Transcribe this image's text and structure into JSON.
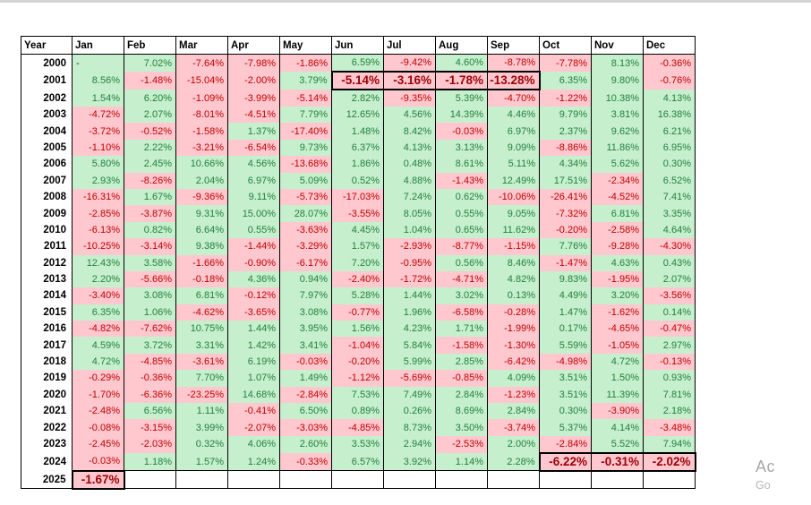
{
  "columns": [
    "Year",
    "Jan",
    "Feb",
    "Mar",
    "Apr",
    "May",
    "Jun",
    "Jul",
    "Aug",
    "Sep",
    "Oct",
    "Nov",
    "Dec"
  ],
  "rows": [
    {
      "year": "2000",
      "values": [
        "-",
        "7.02%",
        "-7.64%",
        "-7.98%",
        "-1.86%",
        "6.59%",
        "-9.42%",
        "4.60%",
        "-8.78%",
        "-7.78%",
        "8.13%",
        "-0.36%"
      ]
    },
    {
      "year": "2001",
      "values": [
        "8.56%",
        "-1.48%",
        "-15.04%",
        "-2.00%",
        "3.79%",
        "-5.14%",
        "-3.16%",
        "-1.78%",
        "-13.28%",
        "6.35%",
        "9.80%",
        "-0.76%"
      ]
    },
    {
      "year": "2002",
      "values": [
        "1.54%",
        "6.20%",
        "-1.09%",
        "-3.99%",
        "-5.14%",
        "2.82%",
        "-9.35%",
        "5.39%",
        "-4.70%",
        "-1.22%",
        "10.38%",
        "4.13%"
      ]
    },
    {
      "year": "2003",
      "values": [
        "-4.72%",
        "2.07%",
        "-8.01%",
        "-4.51%",
        "7.79%",
        "12.65%",
        "4.56%",
        "14.39%",
        "4.46%",
        "9.79%",
        "3.81%",
        "16.38%"
      ]
    },
    {
      "year": "2004",
      "values": [
        "-3.72%",
        "-0.52%",
        "-1.58%",
        "1.37%",
        "-17.40%",
        "1.48%",
        "8.42%",
        "-0.03%",
        "6.97%",
        "2.37%",
        "9.62%",
        "6.21%"
      ]
    },
    {
      "year": "2005",
      "values": [
        "-1.10%",
        "2.22%",
        "-3.21%",
        "-6.54%",
        "9.73%",
        "6.37%",
        "4.13%",
        "3.13%",
        "9.09%",
        "-8.86%",
        "11.86%",
        "6.95%"
      ]
    },
    {
      "year": "2006",
      "values": [
        "5.80%",
        "2.45%",
        "10.66%",
        "4.56%",
        "-13.68%",
        "1.86%",
        "0.48%",
        "8.61%",
        "5.11%",
        "4.34%",
        "5.62%",
        "0.30%"
      ]
    },
    {
      "year": "2007",
      "values": [
        "2.93%",
        "-8.26%",
        "2.04%",
        "6.97%",
        "5.09%",
        "0.52%",
        "4.88%",
        "-1.43%",
        "12.49%",
        "17.51%",
        "-2.34%",
        "6.52%"
      ]
    },
    {
      "year": "2008",
      "values": [
        "-16.31%",
        "1.67%",
        "-9.36%",
        "9.11%",
        "-5.73%",
        "-17.03%",
        "7.24%",
        "0.62%",
        "-10.06%",
        "-26.41%",
        "-4.52%",
        "7.41%"
      ]
    },
    {
      "year": "2009",
      "values": [
        "-2.85%",
        "-3.87%",
        "9.31%",
        "15.00%",
        "28.07%",
        "-3.55%",
        "8.05%",
        "0.55%",
        "9.05%",
        "-7.32%",
        "6.81%",
        "3.35%"
      ]
    },
    {
      "year": "2010",
      "values": [
        "-6.13%",
        "0.82%",
        "6.64%",
        "0.55%",
        "-3.63%",
        "4.45%",
        "1.04%",
        "0.65%",
        "11.62%",
        "-0.20%",
        "-2.58%",
        "4.64%"
      ]
    },
    {
      "year": "2011",
      "values": [
        "-10.25%",
        "-3.14%",
        "9.38%",
        "-1.44%",
        "-3.29%",
        "1.57%",
        "-2.93%",
        "-8.77%",
        "-1.15%",
        "7.76%",
        "-9.28%",
        "-4.30%"
      ]
    },
    {
      "year": "2012",
      "values": [
        "12.43%",
        "3.58%",
        "-1.66%",
        "-0.90%",
        "-6.17%",
        "7.20%",
        "-0.95%",
        "0.56%",
        "8.46%",
        "-1.47%",
        "4.63%",
        "0.43%"
      ]
    },
    {
      "year": "2013",
      "values": [
        "2.20%",
        "-5.66%",
        "-0.18%",
        "4.36%",
        "0.94%",
        "-2.40%",
        "-1.72%",
        "-4.71%",
        "4.82%",
        "9.83%",
        "-1.95%",
        "2.07%"
      ]
    },
    {
      "year": "2014",
      "values": [
        "-3.40%",
        "3.08%",
        "6.81%",
        "-0.12%",
        "7.97%",
        "5.28%",
        "1.44%",
        "3.02%",
        "0.13%",
        "4.49%",
        "3.20%",
        "-3.56%"
      ]
    },
    {
      "year": "2015",
      "values": [
        "6.35%",
        "1.06%",
        "-4.62%",
        "-3.65%",
        "3.08%",
        "-0.77%",
        "1.96%",
        "-6.58%",
        "-0.28%",
        "1.47%",
        "-1.62%",
        "0.14%"
      ]
    },
    {
      "year": "2016",
      "values": [
        "-4.82%",
        "-7.62%",
        "10.75%",
        "1.44%",
        "3.95%",
        "1.56%",
        "4.23%",
        "1.71%",
        "-1.99%",
        "0.17%",
        "-4.65%",
        "-0.47%"
      ]
    },
    {
      "year": "2017",
      "values": [
        "4.59%",
        "3.72%",
        "3.31%",
        "1.42%",
        "3.41%",
        "-1.04%",
        "5.84%",
        "-1.58%",
        "-1.30%",
        "5.59%",
        "-1.05%",
        "2.97%"
      ]
    },
    {
      "year": "2018",
      "values": [
        "4.72%",
        "-4.85%",
        "-3.61%",
        "6.19%",
        "-0.03%",
        "-0.20%",
        "5.99%",
        "2.85%",
        "-6.42%",
        "-4.98%",
        "4.72%",
        "-0.13%"
      ]
    },
    {
      "year": "2019",
      "values": [
        "-0.29%",
        "-0.36%",
        "7.70%",
        "1.07%",
        "1.49%",
        "-1.12%",
        "-5.69%",
        "-0.85%",
        "4.09%",
        "3.51%",
        "1.50%",
        "0.93%"
      ]
    },
    {
      "year": "2020",
      "values": [
        "-1.70%",
        "-6.36%",
        "-23.25%",
        "14.68%",
        "-2.84%",
        "7.53%",
        "7.49%",
        "2.84%",
        "-1.23%",
        "3.51%",
        "11.39%",
        "7.81%"
      ]
    },
    {
      "year": "2021",
      "values": [
        "-2.48%",
        "6.56%",
        "1.11%",
        "-0.41%",
        "6.50%",
        "0.89%",
        "0.26%",
        "8.69%",
        "2.84%",
        "0.30%",
        "-3.90%",
        "2.18%"
      ]
    },
    {
      "year": "2022",
      "values": [
        "-0.08%",
        "-3.15%",
        "3.99%",
        "-2.07%",
        "-3.03%",
        "-4.85%",
        "8.73%",
        "3.50%",
        "-3.74%",
        "5.37%",
        "4.14%",
        "-3.48%"
      ]
    },
    {
      "year": "2023",
      "values": [
        "-2.45%",
        "-2.03%",
        "0.32%",
        "4.06%",
        "2.60%",
        "3.53%",
        "2.94%",
        "-2.53%",
        "2.00%",
        "-2.84%",
        "5.52%",
        "7.94%"
      ]
    },
    {
      "year": "2024",
      "values": [
        "-0.03%",
        "1.18%",
        "1.57%",
        "1.24%",
        "-0.33%",
        "6.57%",
        "3.92%",
        "1.14%",
        "2.28%",
        "-6.22%",
        "-0.31%",
        "-2.02%"
      ]
    },
    {
      "year": "2025",
      "values": [
        "-1.67%",
        null,
        null,
        null,
        null,
        null,
        null,
        null,
        null,
        null,
        null,
        null
      ]
    }
  ],
  "highlights": [
    {
      "year": "2001",
      "from": 5,
      "to": 8
    },
    {
      "year": "2024",
      "from": 9,
      "to": 11
    },
    {
      "year": "2025",
      "from": 0,
      "to": 0
    }
  ],
  "colors": {
    "positive_bg": "#C6EFCE",
    "positive_text": "#23803C",
    "negative_bg": "#FFC7CE",
    "negative_text": "#C00000",
    "highlight_text": "#9C0006",
    "border": "#000000"
  },
  "layout": {
    "year_col_width": 57,
    "month_col_width": 58
  },
  "watermark": {
    "line1": "Ac",
    "line2": "Go"
  }
}
